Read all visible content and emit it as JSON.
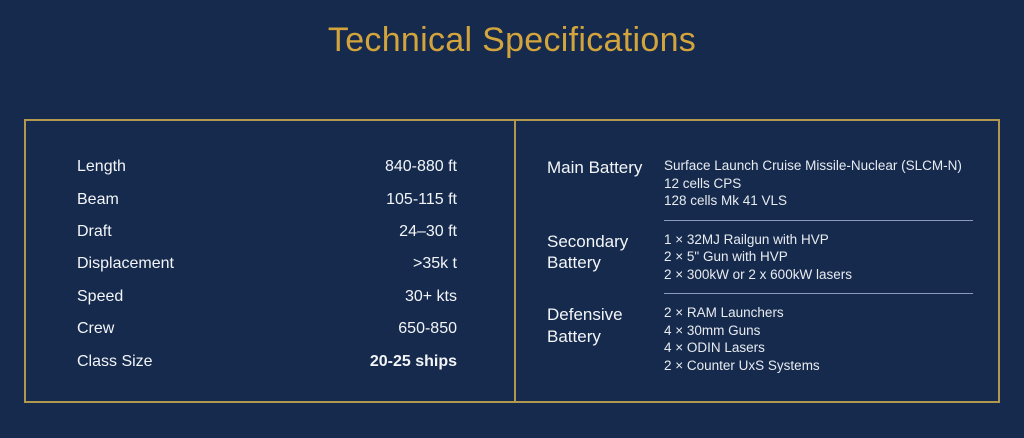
{
  "title": "Technical Specifications",
  "colors": {
    "background": "#152a4d",
    "title_gold": "#d3a43c",
    "border_gold": "#b2974e",
    "divider_line": "#8b9cba",
    "text_white": "#f3f5f8"
  },
  "left_specs": [
    {
      "label": "Length",
      "value": "840-880 ft",
      "bold": false
    },
    {
      "label": "Beam",
      "value": "105-115 ft",
      "bold": false
    },
    {
      "label": "Draft",
      "value": "24–30 ft",
      "bold": false
    },
    {
      "label": "Displacement",
      "value": ">35k t",
      "bold": false
    },
    {
      "label": "Speed",
      "value": "30+ kts",
      "bold": false
    },
    {
      "label": "Crew",
      "value": "650-850",
      "bold": false
    },
    {
      "label": "Class Size",
      "value": "20-25 ships",
      "bold": true
    }
  ],
  "right_specs": [
    {
      "label": "Main Battery",
      "items": [
        "Surface Launch Cruise Missile-Nuclear (SLCM-N)",
        "12 cells CPS",
        "128 cells Mk 41 VLS"
      ]
    },
    {
      "label": "Secondary Battery",
      "items": [
        "1 ×  32MJ Railgun with HVP",
        "2 ×  5\" Gun with HVP",
        "2 ×  300kW or 2 x 600kW lasers"
      ]
    },
    {
      "label": "Defensive Battery",
      "items": [
        "2 ×  RAM Launchers",
        "4 ×  30mm Guns",
        "4 ×  ODIN Lasers",
        "2 ×  Counter UxS Systems"
      ]
    }
  ]
}
